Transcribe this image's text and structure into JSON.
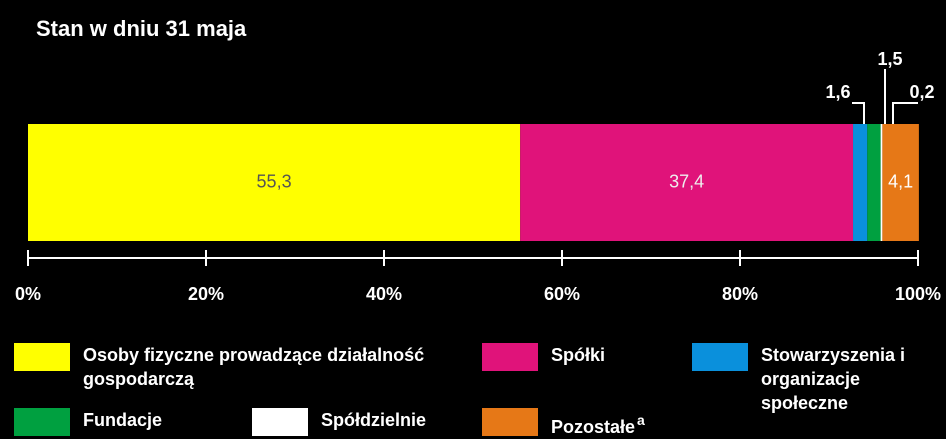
{
  "chart_data": {
    "type": "stacked-bar-horizontal",
    "title": "Stan w dniu 31 maja",
    "series": [
      {
        "name": "Osoby fizyczne prowadzące działalność gospodarczą",
        "color": "#ffff00",
        "values": [
          55.3
        ],
        "value_labels": [
          "55,3"
        ]
      },
      {
        "name": "Spółki",
        "color": "#e0137a",
        "values": [
          37.4
        ],
        "value_labels": [
          "37,4"
        ]
      },
      {
        "name": "Stowarzyszenia i organizacje społeczne",
        "color": "#0a90dc",
        "values": [
          1.6
        ],
        "value_labels": [
          "1,6"
        ]
      },
      {
        "name": "Fundacje",
        "color": "#00a040",
        "values": [
          1.5
        ],
        "value_labels": [
          "1,5"
        ]
      },
      {
        "name": "Spółdzielnie",
        "color": "#ffffff",
        "values": [
          0.2
        ],
        "value_labels": [
          "0,2"
        ]
      },
      {
        "name": "Pozostałe",
        "note": "a",
        "color": "#e67817",
        "values": [
          4.1
        ],
        "value_labels": [
          "4,1"
        ]
      }
    ],
    "xlim": [
      0,
      100
    ],
    "xticks": [
      {
        "value": 0,
        "label": "0%"
      },
      {
        "value": 20,
        "label": "20%"
      },
      {
        "value": 40,
        "label": "40%"
      },
      {
        "value": 60,
        "label": "60%"
      },
      {
        "value": 80,
        "label": "80%"
      },
      {
        "value": 100,
        "label": "100%"
      }
    ]
  }
}
